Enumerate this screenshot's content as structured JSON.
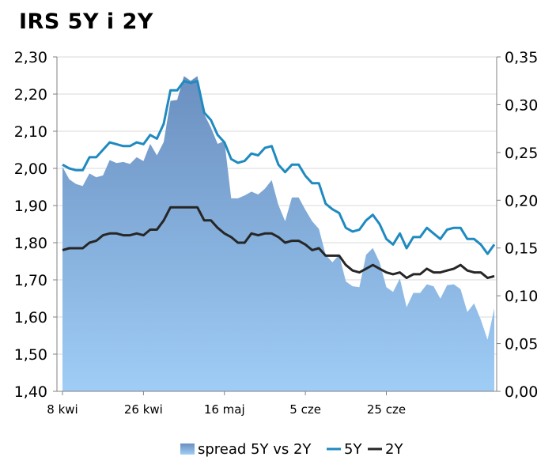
{
  "chart_data": {
    "type": "line",
    "title": "IRS 5Y i 2Y",
    "left_axis": {
      "range": [
        1.4,
        2.3
      ],
      "ticks": [
        "1,40",
        "1,50",
        "1,60",
        "1,70",
        "1,80",
        "1,90",
        "2,00",
        "2,10",
        "2,20",
        "2,30"
      ]
    },
    "right_axis": {
      "range": [
        0.0,
        0.35
      ],
      "ticks": [
        "0,00",
        "0,05",
        "0,10",
        "0,15",
        "0,20",
        "0,25",
        "0,30",
        "0,35"
      ]
    },
    "x_ticks": [
      {
        "label": "8 kwi",
        "index": 0
      },
      {
        "label": "26 kwi",
        "index": 12
      },
      {
        "label": "16 maj",
        "index": 24
      },
      {
        "label": "5 cze",
        "index": 36
      },
      {
        "label": "25 cze",
        "index": 48
      }
    ],
    "grid": true,
    "legend_position": "bottom",
    "series": [
      {
        "name": "spread 5Y vs 2Y",
        "axis": "right",
        "kind": "area",
        "color": "#6d9bd1",
        "values": [
          0.235,
          0.222,
          0.217,
          0.215,
          0.228,
          0.224,
          0.226,
          0.242,
          0.239,
          0.24,
          0.238,
          0.245,
          0.241,
          0.259,
          0.247,
          0.261,
          0.304,
          0.305,
          0.33,
          0.325,
          0.33,
          0.29,
          0.276,
          0.259,
          0.262,
          0.202,
          0.202,
          0.205,
          0.209,
          0.206,
          0.212,
          0.221,
          0.195,
          0.178,
          0.203,
          0.203,
          0.19,
          0.178,
          0.17,
          0.143,
          0.135,
          0.143,
          0.115,
          0.11,
          0.109,
          0.143,
          0.15,
          0.135,
          0.109,
          0.104,
          0.118,
          0.088,
          0.103,
          0.103,
          0.112,
          0.11,
          0.097,
          0.111,
          0.112,
          0.107,
          0.083,
          0.092,
          0.075,
          0.054,
          0.087
        ]
      },
      {
        "name": "5Y",
        "axis": "left",
        "kind": "line",
        "color": "#1f8ac0",
        "values": [
          2.01,
          2.0,
          1.995,
          1.995,
          2.03,
          2.03,
          2.05,
          2.07,
          2.065,
          2.06,
          2.06,
          2.07,
          2.065,
          2.09,
          2.08,
          2.12,
          2.21,
          2.21,
          2.235,
          2.23,
          2.235,
          2.15,
          2.13,
          2.09,
          2.07,
          2.025,
          2.015,
          2.02,
          2.04,
          2.035,
          2.055,
          2.06,
          2.01,
          1.99,
          2.01,
          2.01,
          1.98,
          1.96,
          1.96,
          1.905,
          1.89,
          1.88,
          1.84,
          1.83,
          1.835,
          1.86,
          1.875,
          1.85,
          1.81,
          1.795,
          1.825,
          1.785,
          1.815,
          1.815,
          1.84,
          1.825,
          1.81,
          1.835,
          1.84,
          1.84,
          1.81,
          1.81,
          1.795,
          1.77,
          1.795
        ]
      },
      {
        "name": "2Y",
        "axis": "left",
        "kind": "line",
        "color": "#262626",
        "values": [
          1.78,
          1.785,
          1.785,
          1.785,
          1.8,
          1.805,
          1.82,
          1.825,
          1.825,
          1.82,
          1.82,
          1.825,
          1.82,
          1.835,
          1.835,
          1.86,
          1.895,
          1.895,
          1.895,
          1.895,
          1.895,
          1.86,
          1.86,
          1.84,
          1.825,
          1.815,
          1.8,
          1.8,
          1.825,
          1.82,
          1.825,
          1.825,
          1.815,
          1.8,
          1.805,
          1.805,
          1.795,
          1.78,
          1.785,
          1.765,
          1.765,
          1.765,
          1.74,
          1.725,
          1.72,
          1.73,
          1.74,
          1.73,
          1.72,
          1.715,
          1.72,
          1.705,
          1.715,
          1.715,
          1.73,
          1.72,
          1.72,
          1.725,
          1.73,
          1.74,
          1.725,
          1.72,
          1.72,
          1.705,
          1.71
        ]
      }
    ]
  }
}
